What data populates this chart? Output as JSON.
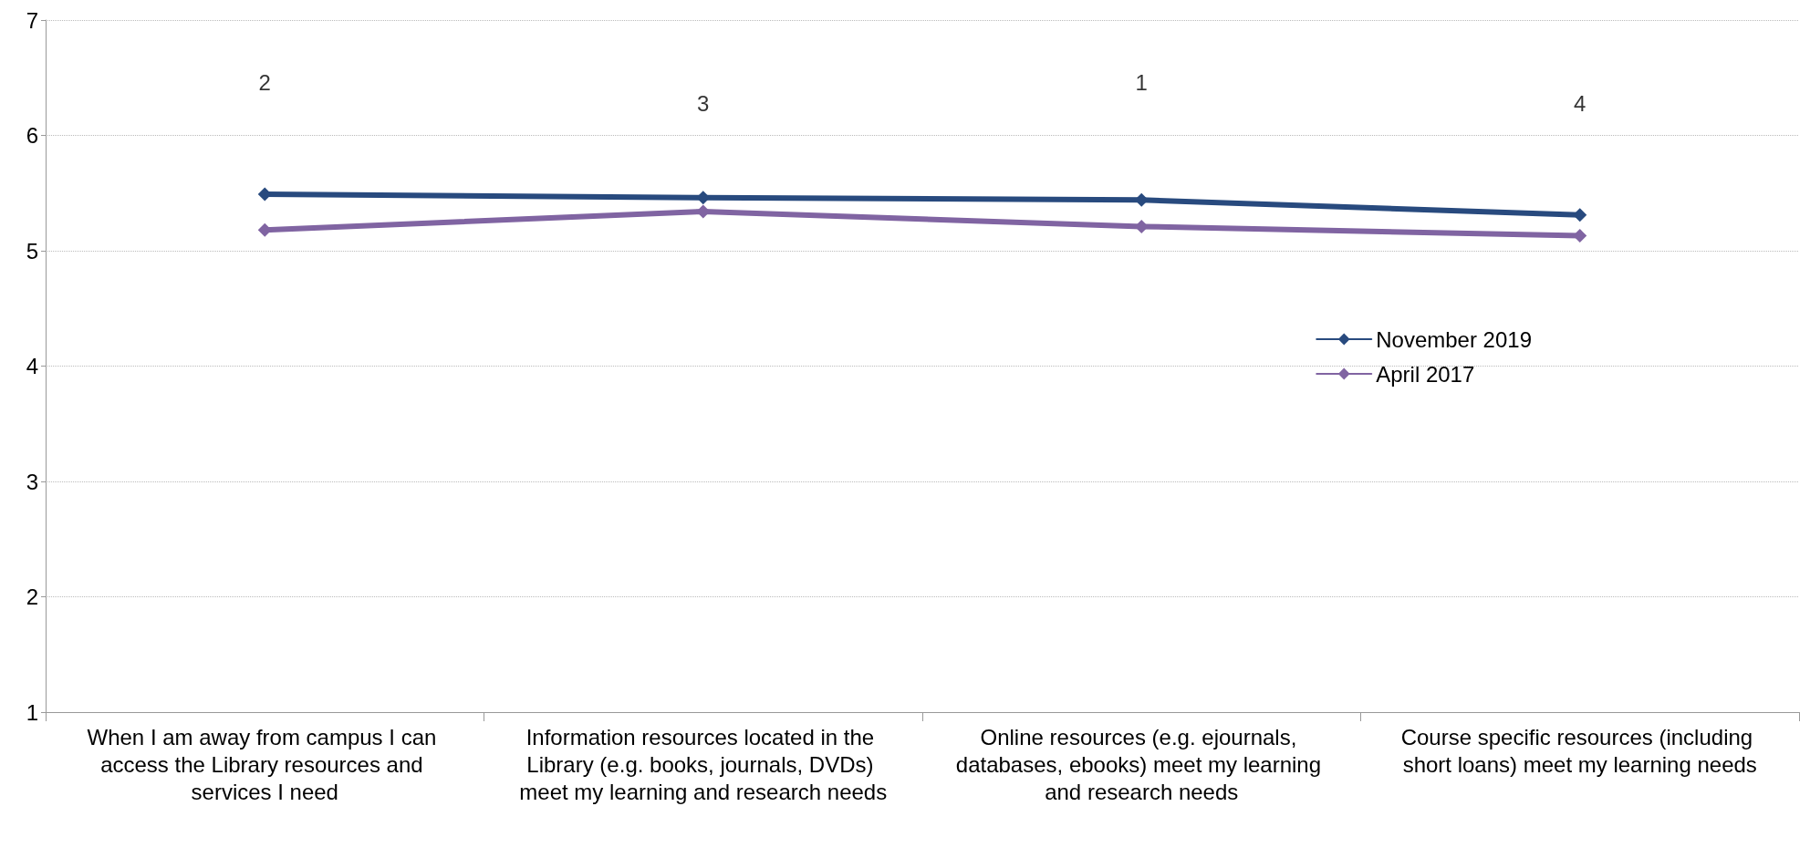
{
  "chart_data": {
    "type": "line",
    "categories": [
      "When I am away from campus I can access the Library resources and services I need",
      "Information resources located in the Library (e.g. books, journals, DVDs) meet my learning and research needs",
      "Online resources (e.g. ejournals, databases, ebooks) meet my learning and research needs",
      "Course specific resources (including short loans) meet my learning needs"
    ],
    "series": [
      {
        "name": "November 2019",
        "color": "#284a7e",
        "values": [
          5.49,
          5.46,
          5.44,
          5.31
        ]
      },
      {
        "name": "April 2017",
        "color": "#8064a2",
        "values": [
          5.18,
          5.34,
          5.21,
          5.13
        ]
      }
    ],
    "annotations": [
      "2",
      "3",
      "1",
      "4"
    ],
    "ylim": [
      1,
      7
    ],
    "yticks": [
      1,
      2,
      3,
      4,
      5,
      6,
      7
    ],
    "grid": "y",
    "legend": "right",
    "marker": "diamond",
    "line_style": "solid"
  }
}
